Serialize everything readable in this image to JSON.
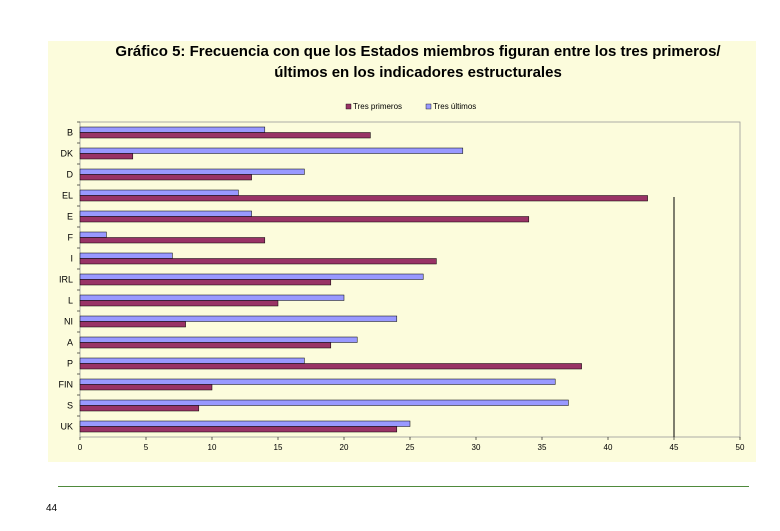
{
  "chart_data": {
    "type": "bar",
    "orientation": "horizontal",
    "title": [
      "Gráfico 5: Frecuencia con que los Estados miembros figuran entre los tres primeros/",
      "últimos en los indicadores estructurales"
    ],
    "categories": [
      "B",
      "DK",
      "D",
      "EL",
      "E",
      "F",
      "I",
      "IRL",
      "L",
      "NI",
      "A",
      "P",
      "FIN",
      "S",
      "UK"
    ],
    "series": [
      {
        "name": "Tres primeros",
        "color": "#993366",
        "values": [
          22,
          4,
          13,
          43,
          34,
          14,
          27,
          19,
          15,
          8,
          19,
          38,
          10,
          9,
          24
        ]
      },
      {
        "name": "Tres últimos",
        "color": "#9999ff",
        "values": [
          14,
          29,
          17,
          12,
          13,
          2,
          7,
          26,
          20,
          24,
          21,
          17,
          36,
          37,
          25
        ]
      }
    ],
    "xlim": [
      0,
      50
    ],
    "xticks": [
      "0",
      "5",
      "10",
      "15",
      "20",
      "25",
      "30",
      "35",
      "40",
      "45",
      "50"
    ],
    "reference_line_x": 45,
    "legend_position": "top",
    "grid": false
  },
  "page": {
    "number": "44"
  }
}
